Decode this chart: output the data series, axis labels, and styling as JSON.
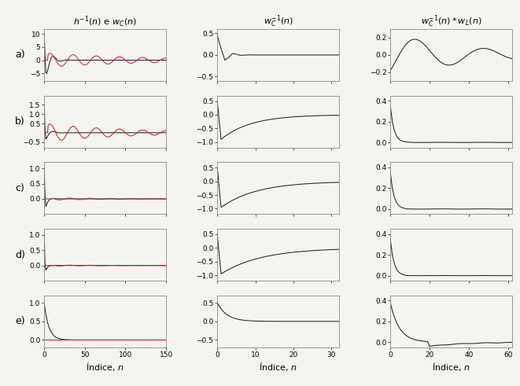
{
  "col_titles": [
    "$h^{-1}(n)$ e $w_C(n)$",
    "$w_C^{-1}(n)$",
    "$w_C^{-1}(n)*w_L(n)$"
  ],
  "row_labels": [
    "a)",
    "b)",
    "c)",
    "d)",
    "e)"
  ],
  "xlabel": "Índice, $n$",
  "col1_xlim": [
    0,
    150
  ],
  "col1_xticks": [
    0,
    50,
    100,
    150
  ],
  "col2_xlim": [
    0,
    32
  ],
  "col2_xticks": [
    0,
    10,
    20,
    30
  ],
  "col3_xlim": [
    0,
    62
  ],
  "col3_xticks": [
    0,
    20,
    40,
    60
  ],
  "row_a_col1_ylim": [
    -8,
    12
  ],
  "row_a_col1_yticks": [
    -5,
    0,
    5,
    10
  ],
  "row_a_col2_ylim": [
    -0.6,
    0.6
  ],
  "row_a_col2_yticks": [
    -0.5,
    0,
    0.5
  ],
  "row_a_col3_ylim": [
    -0.3,
    0.3
  ],
  "row_a_col3_yticks": [
    -0.2,
    0,
    0.2
  ],
  "row_b_col1_ylim": [
    -0.8,
    2.0
  ],
  "row_b_col1_yticks": [
    -0.5,
    0.5,
    1.0,
    1.5
  ],
  "row_b_col2_ylim": [
    -1.2,
    0.7
  ],
  "row_b_col2_yticks": [
    -1,
    -0.5,
    0,
    0.5
  ],
  "row_b_col3_ylim": [
    -0.05,
    0.45
  ],
  "row_b_col3_yticks": [
    0,
    0.2,
    0.4
  ],
  "row_c_col1_ylim": [
    -0.5,
    1.2
  ],
  "row_c_col1_yticks": [
    0,
    0.5,
    1.0
  ],
  "row_c_col2_ylim": [
    -1.2,
    0.7
  ],
  "row_c_col2_yticks": [
    -1,
    -0.5,
    0,
    0.5
  ],
  "row_c_col3_ylim": [
    -0.05,
    0.45
  ],
  "row_c_col3_yticks": [
    0,
    0.2,
    0.4
  ],
  "row_d_col1_ylim": [
    -0.5,
    1.2
  ],
  "row_d_col1_yticks": [
    0,
    0.5,
    1.0
  ],
  "row_d_col2_ylim": [
    -1.2,
    0.7
  ],
  "row_d_col2_yticks": [
    -1,
    -0.5,
    0,
    0.5
  ],
  "row_d_col3_ylim": [
    -0.05,
    0.45
  ],
  "row_d_col3_yticks": [
    0,
    0.2,
    0.4
  ],
  "row_e_col1_ylim": [
    -0.2,
    1.2
  ],
  "row_e_col1_yticks": [
    0,
    0.5,
    1.0
  ],
  "row_e_col2_ylim": [
    -0.7,
    0.7
  ],
  "row_e_col2_yticks": [
    -0.5,
    0,
    0.5
  ],
  "row_e_col3_ylim": [
    -0.05,
    0.45
  ],
  "row_e_col3_yticks": [
    0,
    0.2,
    0.4
  ],
  "black_color": "#222222",
  "red_color": "#cc2222",
  "bg_color": "#f5f5f0",
  "tick_fontsize": 6.5,
  "label_fontsize": 8,
  "title_fontsize": 8,
  "row_label_fontsize": 9
}
